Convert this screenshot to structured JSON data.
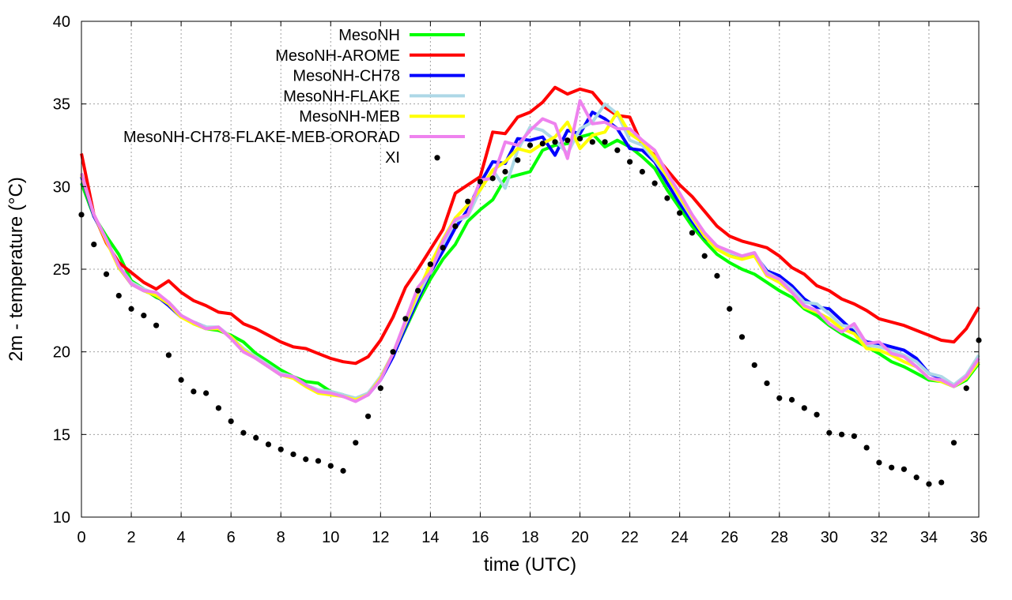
{
  "chart_data": {
    "type": "line",
    "xlabel": "time (UTC)",
    "ylabel": "2m - temperature (°C)",
    "xlim": [
      0,
      36
    ],
    "ylim": [
      10,
      40
    ],
    "xticks": [
      0,
      2,
      4,
      6,
      8,
      10,
      12,
      14,
      16,
      18,
      20,
      22,
      24,
      26,
      28,
      30,
      32,
      34,
      36
    ],
    "yticks": [
      10,
      15,
      20,
      25,
      30,
      35,
      40
    ],
    "grid": true,
    "legend_position": "top-left",
    "series": [
      {
        "name": "MesoNH",
        "color": "#00ff00",
        "style": "line",
        "x": [
          0,
          0.5,
          1,
          1.5,
          2,
          2.5,
          3,
          3.5,
          4,
          4.5,
          5,
          5.5,
          6,
          6.5,
          7,
          7.5,
          8,
          8.5,
          9,
          9.5,
          10,
          10.5,
          11,
          11.5,
          12,
          12.5,
          13,
          13.5,
          14,
          14.5,
          15,
          15.5,
          16,
          16.5,
          17,
          17.5,
          18,
          18.5,
          19,
          19.5,
          20,
          20.5,
          21,
          21.5,
          22,
          22.5,
          23,
          23.5,
          24,
          24.5,
          25,
          25.5,
          26,
          26.5,
          27,
          27.5,
          28,
          28.5,
          29,
          29.5,
          30,
          30.5,
          31,
          31.5,
          32,
          32.5,
          33,
          33.5,
          34,
          34.5,
          35,
          35.5,
          36
        ],
        "y": [
          30.2,
          28.2,
          27,
          25.9,
          24.3,
          23.8,
          23.3,
          23,
          22.2,
          21.7,
          21.4,
          21.3,
          21,
          20.6,
          19.9,
          19.4,
          18.9,
          18.5,
          18.2,
          18.1,
          17.6,
          17.4,
          17.1,
          17.5,
          18.4,
          19.8,
          21.4,
          23,
          24.4,
          25.6,
          26.5,
          27.9,
          28.6,
          29.2,
          30.5,
          30.7,
          30.9,
          32.2,
          32.5,
          32.6,
          33,
          33.2,
          32.4,
          32.8,
          32.4,
          31.8,
          31.1,
          29.8,
          28.7,
          27.6,
          26.7,
          25.9,
          25.4,
          25,
          24.7,
          24.2,
          23.7,
          23.3,
          22.6,
          22.2,
          21.6,
          21.1,
          20.7,
          20.3,
          19.9,
          19.4,
          19.1,
          18.7,
          18.3,
          18.2,
          17.9,
          18.3,
          19.3
        ]
      },
      {
        "name": "MesoNH-AROME",
        "color": "#ff0000",
        "style": "line",
        "x": [
          0,
          0.5,
          1,
          1.5,
          2,
          2.5,
          3,
          3.5,
          4,
          4.5,
          5,
          5.5,
          6,
          6.5,
          7,
          7.5,
          8,
          8.5,
          9,
          9.5,
          10,
          10.5,
          11,
          11.5,
          12,
          12.5,
          13,
          13.5,
          14,
          14.5,
          15,
          15.5,
          16,
          16.5,
          17,
          17.5,
          18,
          18.5,
          19,
          19.5,
          20,
          20.5,
          21,
          21.5,
          22,
          22.5,
          23,
          23.5,
          24,
          24.5,
          25,
          25.5,
          26,
          26.5,
          27,
          27.5,
          28,
          28.5,
          29,
          29.5,
          30,
          30.5,
          31,
          31.5,
          32,
          32.5,
          33,
          33.5,
          34,
          34.5,
          35,
          35.5,
          36
        ],
        "y": [
          32,
          28.3,
          26.6,
          25.4,
          24.8,
          24.2,
          23.8,
          24.3,
          23.6,
          23.1,
          22.8,
          22.4,
          22.3,
          21.7,
          21.4,
          21,
          20.6,
          20.3,
          20.2,
          19.9,
          19.6,
          19.4,
          19.3,
          19.7,
          20.7,
          22.1,
          23.9,
          25,
          26.2,
          27.4,
          29.6,
          30.1,
          30.6,
          33.3,
          33.2,
          34.2,
          34.5,
          35.1,
          36,
          35.6,
          35.9,
          35.7,
          34.8,
          34.3,
          34.2,
          32.5,
          31.9,
          31,
          30.1,
          29.4,
          28.5,
          27.6,
          27,
          26.7,
          26.5,
          26.3,
          25.8,
          25.1,
          24.7,
          24,
          23.7,
          23.2,
          22.9,
          22.5,
          22,
          21.8,
          21.6,
          21.3,
          21,
          20.7,
          20.6,
          21.4,
          22.7
        ]
      },
      {
        "name": "MesoNH-CH78",
        "color": "#0000ff",
        "style": "line",
        "x": [
          0,
          0.5,
          1,
          1.5,
          2,
          2.5,
          3,
          3.5,
          4,
          4.5,
          5,
          5.5,
          6,
          6.5,
          7,
          7.5,
          8,
          8.5,
          9,
          9.5,
          10,
          10.5,
          11,
          11.5,
          12,
          12.5,
          13,
          13.5,
          14,
          14.5,
          15,
          15.5,
          16,
          16.5,
          17,
          17.5,
          18,
          18.5,
          19,
          19.5,
          20,
          20.5,
          21,
          21.5,
          22,
          22.5,
          23,
          23.5,
          24,
          24.5,
          25,
          25.5,
          26,
          26.5,
          27,
          27.5,
          28,
          28.5,
          29,
          29.5,
          30,
          30.5,
          31,
          31.5,
          32,
          32.5,
          33,
          33.5,
          34,
          34.5,
          35,
          35.5,
          36
        ],
        "y": [
          30.6,
          28.2,
          26.8,
          25.1,
          24.1,
          23.7,
          23.4,
          22.8,
          22.1,
          21.8,
          21.5,
          21.4,
          20.9,
          20.1,
          19.6,
          19.1,
          18.6,
          18.5,
          18,
          17.6,
          17.5,
          17.3,
          17.1,
          17.4,
          18.3,
          19.7,
          21.5,
          23.2,
          24.8,
          26.1,
          27.5,
          28.6,
          30.2,
          31.5,
          31.4,
          32.9,
          32.8,
          33,
          31.9,
          33.4,
          33.2,
          34.5,
          34.1,
          33.5,
          32.3,
          32.2,
          31.5,
          30.2,
          29,
          27.9,
          26.9,
          26.4,
          26,
          25.7,
          25.9,
          24.9,
          24.6,
          24,
          23.2,
          22.7,
          22.6,
          21.9,
          21.2,
          20.6,
          20.5,
          20.3,
          20.1,
          19.6,
          18.7,
          18.4,
          18,
          18.5,
          19.4
        ]
      },
      {
        "name": "MesoNH-FLAKE",
        "color": "#add8e6",
        "style": "line",
        "x": [
          0,
          0.5,
          1,
          1.5,
          2,
          2.5,
          3,
          3.5,
          4,
          4.5,
          5,
          5.5,
          6,
          6.5,
          7,
          7.5,
          8,
          8.5,
          9,
          9.5,
          10,
          10.5,
          11,
          11.5,
          12,
          12.5,
          13,
          13.5,
          14,
          14.5,
          15,
          15.5,
          16,
          16.5,
          17,
          17.5,
          18,
          18.5,
          19,
          19.5,
          20,
          20.5,
          21,
          21.5,
          22,
          22.5,
          23,
          23.5,
          24,
          24.5,
          25,
          25.5,
          26,
          26.5,
          27,
          27.5,
          28,
          28.5,
          29,
          29.5,
          30,
          30.5,
          31,
          31.5,
          32,
          32.5,
          33,
          33.5,
          34,
          34.5,
          35,
          35.5,
          36
        ],
        "y": [
          30.8,
          28.3,
          26.8,
          25.2,
          24.2,
          23.8,
          23.5,
          23,
          22.2,
          21.8,
          21.5,
          21.5,
          20.9,
          20.2,
          19.7,
          19.2,
          18.7,
          18.5,
          18,
          17.7,
          17.6,
          17.4,
          17.2,
          17.5,
          18.5,
          19.9,
          21.7,
          23.4,
          24.9,
          26.5,
          27.9,
          28.2,
          29.8,
          31,
          29.9,
          32.2,
          33.6,
          33.4,
          32.8,
          32,
          33.5,
          33.9,
          35,
          34.4,
          32.8,
          32.5,
          31.6,
          30.6,
          29.3,
          28.1,
          27,
          26.3,
          26,
          25.8,
          26,
          24.8,
          24.4,
          23.8,
          23,
          22.9,
          22.3,
          21.6,
          21.5,
          20.4,
          20.3,
          20.1,
          19.8,
          19.4,
          18.7,
          18.5,
          18,
          18.6,
          19.8
        ]
      },
      {
        "name": "MesoNH-MEB",
        "color": "#ffff00",
        "style": "line",
        "x": [
          0,
          0.5,
          1,
          1.5,
          2,
          2.5,
          3,
          3.5,
          4,
          4.5,
          5,
          5.5,
          6,
          6.5,
          7,
          7.5,
          8,
          8.5,
          9,
          9.5,
          10,
          10.5,
          11,
          11.5,
          12,
          12.5,
          13,
          13.5,
          14,
          14.5,
          15,
          15.5,
          16,
          16.5,
          17,
          17.5,
          18,
          18.5,
          19,
          19.5,
          20,
          20.5,
          21,
          21.5,
          22,
          22.5,
          23,
          23.5,
          24,
          24.5,
          25,
          25.5,
          26,
          26.5,
          27,
          27.5,
          28,
          28.5,
          29,
          29.5,
          30,
          30.5,
          31,
          31.5,
          32,
          32.5,
          33,
          33.5,
          34,
          34.5,
          35,
          35.5,
          36
        ],
        "y": [
          30.7,
          28.3,
          26.7,
          25.1,
          24.1,
          23.7,
          23.4,
          22.9,
          22.1,
          21.7,
          21.4,
          21.4,
          20.9,
          20.1,
          19.6,
          19.1,
          18.6,
          18.4,
          17.9,
          17.5,
          17.4,
          17.3,
          17.1,
          17.4,
          18.4,
          19.9,
          21.8,
          23.6,
          25.3,
          26.8,
          28.1,
          28.9,
          29.8,
          31,
          31.5,
          32.3,
          32.1,
          32.6,
          33,
          33.9,
          32.3,
          33.1,
          33.3,
          34.5,
          33.2,
          32.7,
          31.8,
          30.6,
          29.4,
          28.2,
          27,
          26.2,
          25.8,
          25.6,
          25.8,
          24.6,
          24.2,
          23.6,
          22.7,
          22.4,
          22,
          21.4,
          21.1,
          20.2,
          20.1,
          19.8,
          19.4,
          19.1,
          18.4,
          18.2,
          17.9,
          18.4,
          19.4
        ]
      },
      {
        "name": "MesoNH-CH78-FLAKE-MEB-ORORAD",
        "color": "#ee82ee",
        "style": "line",
        "x": [
          0,
          0.5,
          1,
          1.5,
          2,
          2.5,
          3,
          3.5,
          4,
          4.5,
          5,
          5.5,
          6,
          6.5,
          7,
          7.5,
          8,
          8.5,
          9,
          9.5,
          10,
          10.5,
          11,
          11.5,
          12,
          12.5,
          13,
          13.5,
          14,
          14.5,
          15,
          15.5,
          16,
          16.5,
          17,
          17.5,
          18,
          18.5,
          19,
          19.5,
          20,
          20.5,
          21,
          21.5,
          22,
          22.5,
          23,
          23.5,
          24,
          24.5,
          25,
          25.5,
          26,
          26.5,
          27,
          27.5,
          28,
          28.5,
          29,
          29.5,
          30,
          30.5,
          31,
          31.5,
          32,
          32.5,
          33,
          33.5,
          34,
          34.5,
          35,
          35.5,
          36
        ],
        "y": [
          30.8,
          28.3,
          26.8,
          25.2,
          24.1,
          23.7,
          23.6,
          23,
          22.2,
          21.8,
          21.4,
          21.5,
          20.8,
          20,
          19.6,
          19.1,
          18.6,
          18.5,
          18,
          17.6,
          17.5,
          17.3,
          17,
          17.4,
          18.3,
          19.9,
          21.9,
          23.9,
          24.8,
          26.7,
          28,
          28.3,
          30.4,
          30.5,
          32.7,
          32.5,
          33.4,
          34.1,
          33.8,
          31.7,
          35.2,
          33.8,
          33.9,
          33.5,
          33.5,
          32.8,
          32.2,
          30.8,
          29.6,
          28.3,
          27.2,
          26.4,
          26.1,
          25.8,
          26,
          24.7,
          24.4,
          23.6,
          22.8,
          22.5,
          21.7,
          21.2,
          21.7,
          20.5,
          20.6,
          19.9,
          19.7,
          19.1,
          18.4,
          18.3,
          17.9,
          18.5,
          19.6
        ]
      },
      {
        "name": "XI",
        "color": "#000000",
        "style": "points",
        "x": [
          0,
          0.5,
          1,
          1.5,
          2,
          2.5,
          3,
          3.5,
          4,
          4.5,
          5,
          5.5,
          6,
          6.5,
          7,
          7.5,
          8,
          8.5,
          9,
          9.5,
          10,
          10.5,
          11,
          11.5,
          12,
          12.5,
          13,
          13.5,
          14,
          14.5,
          15,
          15.5,
          16,
          16.5,
          17,
          17.5,
          18,
          18.5,
          19,
          19.5,
          20,
          20.5,
          21,
          21.5,
          22,
          22.5,
          23,
          23.5,
          24,
          24.5,
          25,
          25.5,
          26,
          26.5,
          27,
          27.5,
          28,
          28.5,
          29,
          29.5,
          30,
          30.5,
          31,
          31.5,
          32,
          32.5,
          33,
          33.5,
          34,
          34.5,
          35,
          35.5,
          36
        ],
        "y": [
          28.3,
          26.5,
          24.7,
          23.4,
          22.6,
          22.2,
          21.6,
          19.8,
          18.3,
          17.6,
          17.5,
          16.6,
          15.8,
          15.1,
          14.8,
          14.4,
          14.1,
          13.8,
          13.5,
          13.4,
          13.1,
          12.8,
          14.5,
          16.1,
          17.8,
          20,
          22,
          23.7,
          25.3,
          26.3,
          27.6,
          29.1,
          30.3,
          30.5,
          30.9,
          31.6,
          32.5,
          32.6,
          32.7,
          32.8,
          32.9,
          32.7,
          32.7,
          32.2,
          31.5,
          30.9,
          30.2,
          29.3,
          28.4,
          27.2,
          25.8,
          24.6,
          22.6,
          20.9,
          19.2,
          18.1,
          17.2,
          17.1,
          16.6,
          16.2,
          15.1,
          15,
          14.9,
          14.2,
          13.3,
          13,
          12.9,
          12.4,
          12,
          12.1,
          14.5,
          17.8,
          20.7
        ]
      }
    ]
  }
}
